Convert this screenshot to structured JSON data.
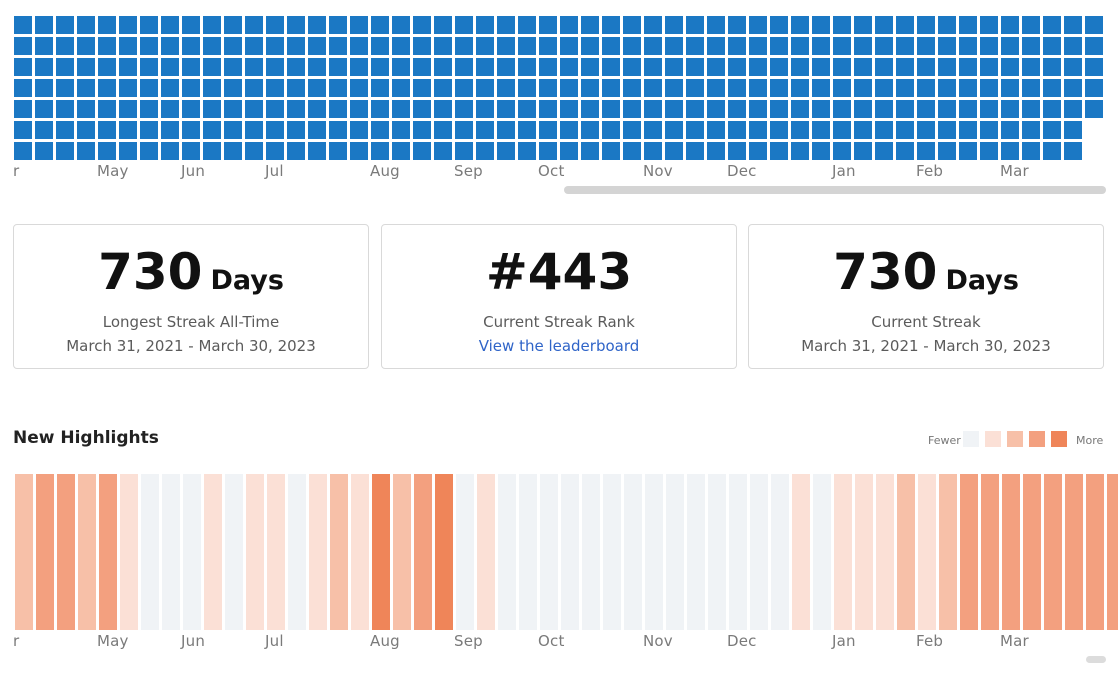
{
  "colors": {
    "heatmap_cell": "#1b78c4",
    "card_border": "#d9d9d9",
    "link": "#2f64c8",
    "scale": [
      "#f0f3f6",
      "#fbe0d6",
      "#f7c0a8",
      "#f3a07f",
      "#ef8559"
    ]
  },
  "heatmap": {
    "rows": 7,
    "columns": 52,
    "short_last_rows": 2
  },
  "months_top": [
    "r",
    "May",
    "Jun",
    "Jul",
    "Aug",
    "Sep",
    "Oct",
    "Nov",
    "Dec",
    "Jan",
    "Feb",
    "Mar"
  ],
  "stats": [
    {
      "value": "730",
      "unit": "Days",
      "label": "Longest Streak All-Time",
      "sub": "March 31, 2021 - March 30, 2023"
    },
    {
      "value": "#443",
      "unit": "",
      "label": "Current Streak Rank",
      "link": "View the leaderboard"
    },
    {
      "value": "730",
      "unit": "Days",
      "label": "Current Streak",
      "sub": "March 31, 2021 - March 30, 2023"
    }
  ],
  "highlights": {
    "title": "New Highlights",
    "legend_fewer": "Fewer",
    "legend_more": "More",
    "levels": [
      2,
      3,
      3,
      2,
      3,
      1,
      0,
      0,
      0,
      1,
      0,
      1,
      1,
      0,
      1,
      2,
      1,
      4,
      2,
      3,
      4,
      0,
      1,
      0,
      0,
      0,
      0,
      0,
      0,
      0,
      0,
      0,
      0,
      0,
      0,
      0,
      0,
      1,
      0,
      1,
      1,
      1,
      2,
      1,
      2,
      3,
      3,
      3,
      3,
      3,
      3,
      3,
      3
    ],
    "months": [
      "r",
      "May",
      "Jun",
      "Jul",
      "Aug",
      "Sep",
      "Oct",
      "Nov",
      "Dec",
      "Jan",
      "Feb",
      "Mar"
    ]
  }
}
